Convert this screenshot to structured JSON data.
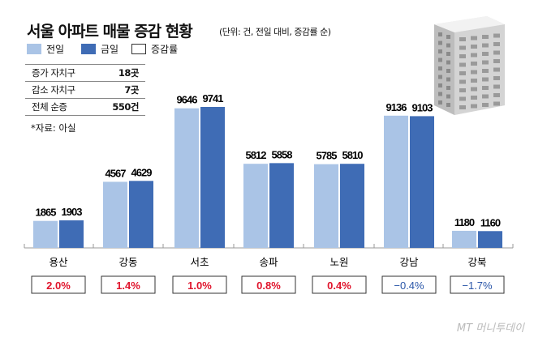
{
  "title": "서울 아파트 매물 증감 현황",
  "unit_note": "(단위: 건, 전일 대비, 증감률 순)",
  "legend": [
    {
      "label": "전일",
      "color": "#aac4e6"
    },
    {
      "label": "금일",
      "color": "#3f6cb5"
    },
    {
      "label": "증감률",
      "color": "#ffffff"
    }
  ],
  "summary": [
    {
      "label": "증가 자치구",
      "value": "18곳"
    },
    {
      "label": "감소 자치구",
      "value": "7곳"
    },
    {
      "label": "전체 순증",
      "value": "550건"
    }
  ],
  "source": "*자료: 아실",
  "watermark": "MT 머니투데이",
  "colors": {
    "positive": "#e0142c",
    "negative": "#2a56a8"
  },
  "chart_data": {
    "type": "bar",
    "categories": [
      "용산",
      "강동",
      "서초",
      "송파",
      "노원",
      "강남",
      "강북"
    ],
    "series": [
      {
        "name": "전일",
        "values": [
          1865,
          4567,
          9646,
          5812,
          5785,
          9136,
          1180
        ]
      },
      {
        "name": "금일",
        "values": [
          1903,
          4629,
          9741,
          5858,
          5810,
          9103,
          1160
        ]
      }
    ],
    "change_rates": [
      "2.0%",
      "1.4%",
      "1.0%",
      "0.8%",
      "0.4%",
      "−0.4%",
      "−1.7%"
    ],
    "change_values": [
      2.0,
      1.4,
      1.0,
      0.8,
      0.4,
      -0.4,
      -1.7
    ]
  }
}
